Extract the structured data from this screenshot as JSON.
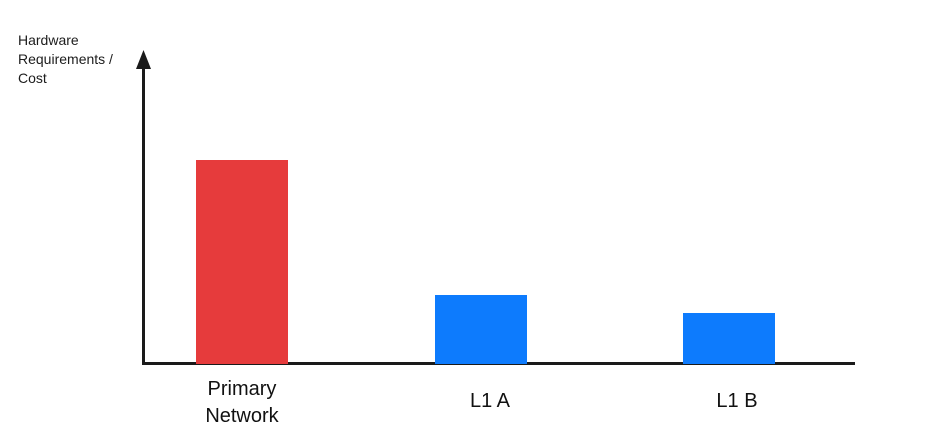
{
  "chart_data": {
    "type": "bar",
    "title": "",
    "ylabel": "Hardware\nRequirements /\nCost",
    "xlabel": "",
    "categories": [
      "Primary Network",
      "L1 A",
      "L1 B"
    ],
    "values": [
      100,
      34,
      25
    ],
    "value_note": "relative units; axis has no tick labels or gridlines",
    "bar_colors": [
      "#E63B3C",
      "#0D7BFD",
      "#0D7BFD"
    ],
    "ylim": [
      0,
      110
    ],
    "grid": false,
    "legend": false,
    "axis_color": "#1a1a1a",
    "axis_style": "arrow on y-axis, plain x-axis baseline"
  }
}
